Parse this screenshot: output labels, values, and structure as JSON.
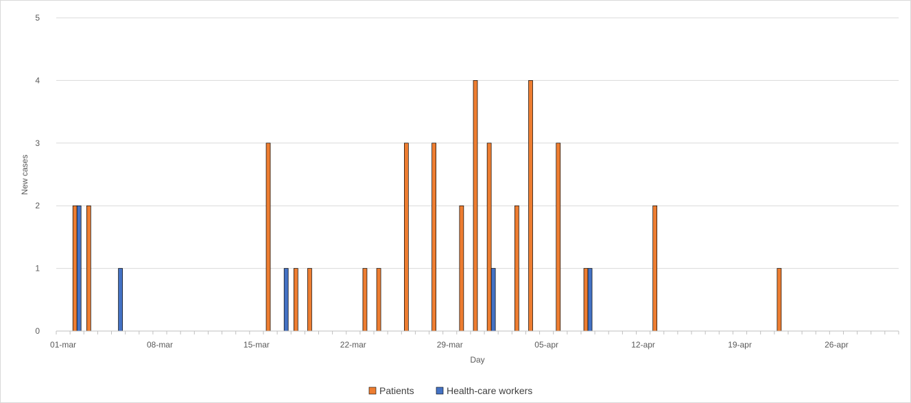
{
  "chart_data": {
    "type": "bar",
    "title": "",
    "xlabel": "Day",
    "ylabel": "New cases",
    "ylim": [
      0,
      5
    ],
    "yticks": [
      0,
      1,
      2,
      3,
      4,
      5
    ],
    "xrange": [
      "2020-03-01",
      "2020-04-30"
    ],
    "xtick_labels": [
      {
        "date": "2020-03-01",
        "label": "01-mar"
      },
      {
        "date": "2020-03-08",
        "label": "08-mar"
      },
      {
        "date": "2020-03-15",
        "label": "15-mar"
      },
      {
        "date": "2020-03-22",
        "label": "22-mar"
      },
      {
        "date": "2020-03-29",
        "label": "29-mar"
      },
      {
        "date": "2020-04-05",
        "label": "05-apr"
      },
      {
        "date": "2020-04-12",
        "label": "12-apr"
      },
      {
        "date": "2020-04-19",
        "label": "19-apr"
      },
      {
        "date": "2020-04-26",
        "label": "26-apr"
      }
    ],
    "grid": true,
    "legend_position": "bottom",
    "series": [
      {
        "name": "Patients",
        "color": "#ED7D31",
        "points": [
          {
            "x": "2020-03-02",
            "y": 2
          },
          {
            "x": "2020-03-03",
            "y": 2
          },
          {
            "x": "2020-03-16",
            "y": 3
          },
          {
            "x": "2020-03-18",
            "y": 1
          },
          {
            "x": "2020-03-19",
            "y": 1
          },
          {
            "x": "2020-03-23",
            "y": 1
          },
          {
            "x": "2020-03-24",
            "y": 1
          },
          {
            "x": "2020-03-26",
            "y": 3
          },
          {
            "x": "2020-03-28",
            "y": 3
          },
          {
            "x": "2020-03-30",
            "y": 2
          },
          {
            "x": "2020-03-31",
            "y": 4
          },
          {
            "x": "2020-04-01",
            "y": 3
          },
          {
            "x": "2020-04-03",
            "y": 2
          },
          {
            "x": "2020-04-04",
            "y": 4
          },
          {
            "x": "2020-04-06",
            "y": 3
          },
          {
            "x": "2020-04-08",
            "y": 1
          },
          {
            "x": "2020-04-13",
            "y": 2
          },
          {
            "x": "2020-04-22",
            "y": 1
          }
        ]
      },
      {
        "name": "Health-care workers",
        "color": "#4472C4",
        "points": [
          {
            "x": "2020-03-02",
            "y": 2
          },
          {
            "x": "2020-03-05",
            "y": 1
          },
          {
            "x": "2020-03-17",
            "y": 1
          },
          {
            "x": "2020-04-01",
            "y": 1
          },
          {
            "x": "2020-04-08",
            "y": 1
          }
        ]
      }
    ]
  }
}
